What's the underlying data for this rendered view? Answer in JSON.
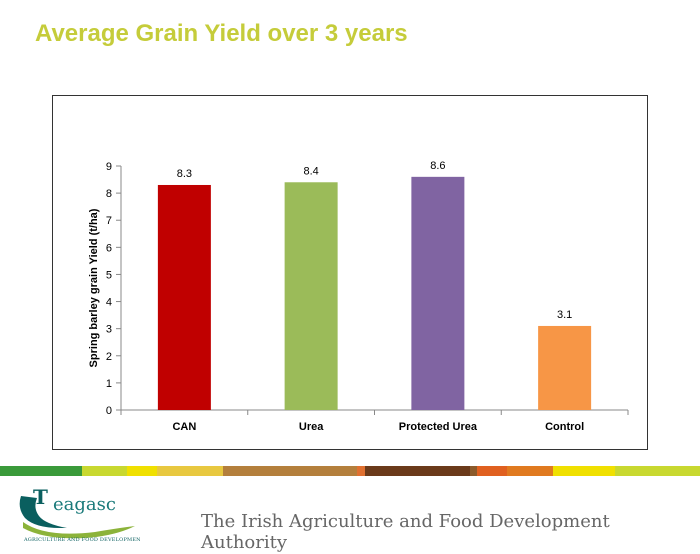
{
  "slide": {
    "title": "Average Grain Yield over 3 years",
    "tagline": "The Irish Agriculture and Food Development Authority"
  },
  "logo": {
    "name": "teagasc",
    "subtitle": "Agriculture and Food Development Authority",
    "colors": {
      "text": "#1a7a7a",
      "swoosh": "#8cb33a",
      "dark": "#0a5f5f"
    }
  },
  "stripe_colors": [
    "#3a9a3a",
    "#c8d830",
    "#f0e000",
    "#e8c840",
    "#b47f3c",
    "#e07030",
    "#6b3a1a",
    "#8b5a2b",
    "#e06020",
    "#e07a20",
    "#f0e000",
    "#c8d830"
  ],
  "chart_data": {
    "type": "bar",
    "categories": [
      "CAN",
      "Urea",
      "Protected Urea",
      "Control"
    ],
    "values": [
      8.3,
      8.4,
      8.6,
      3.1
    ],
    "value_labels": [
      "8.3",
      "8.4",
      "8.6",
      "3.1"
    ],
    "colors": [
      "#c00000",
      "#9bbb59",
      "#8064a2",
      "#f79646"
    ],
    "ylabel": "Spring barley grain Yield (t/ha)",
    "xlabel": "",
    "ylim": [
      0,
      9
    ],
    "yticks": [
      0,
      1,
      2,
      3,
      4,
      5,
      6,
      7,
      8,
      9
    ],
    "grid": false,
    "legend": "none"
  }
}
